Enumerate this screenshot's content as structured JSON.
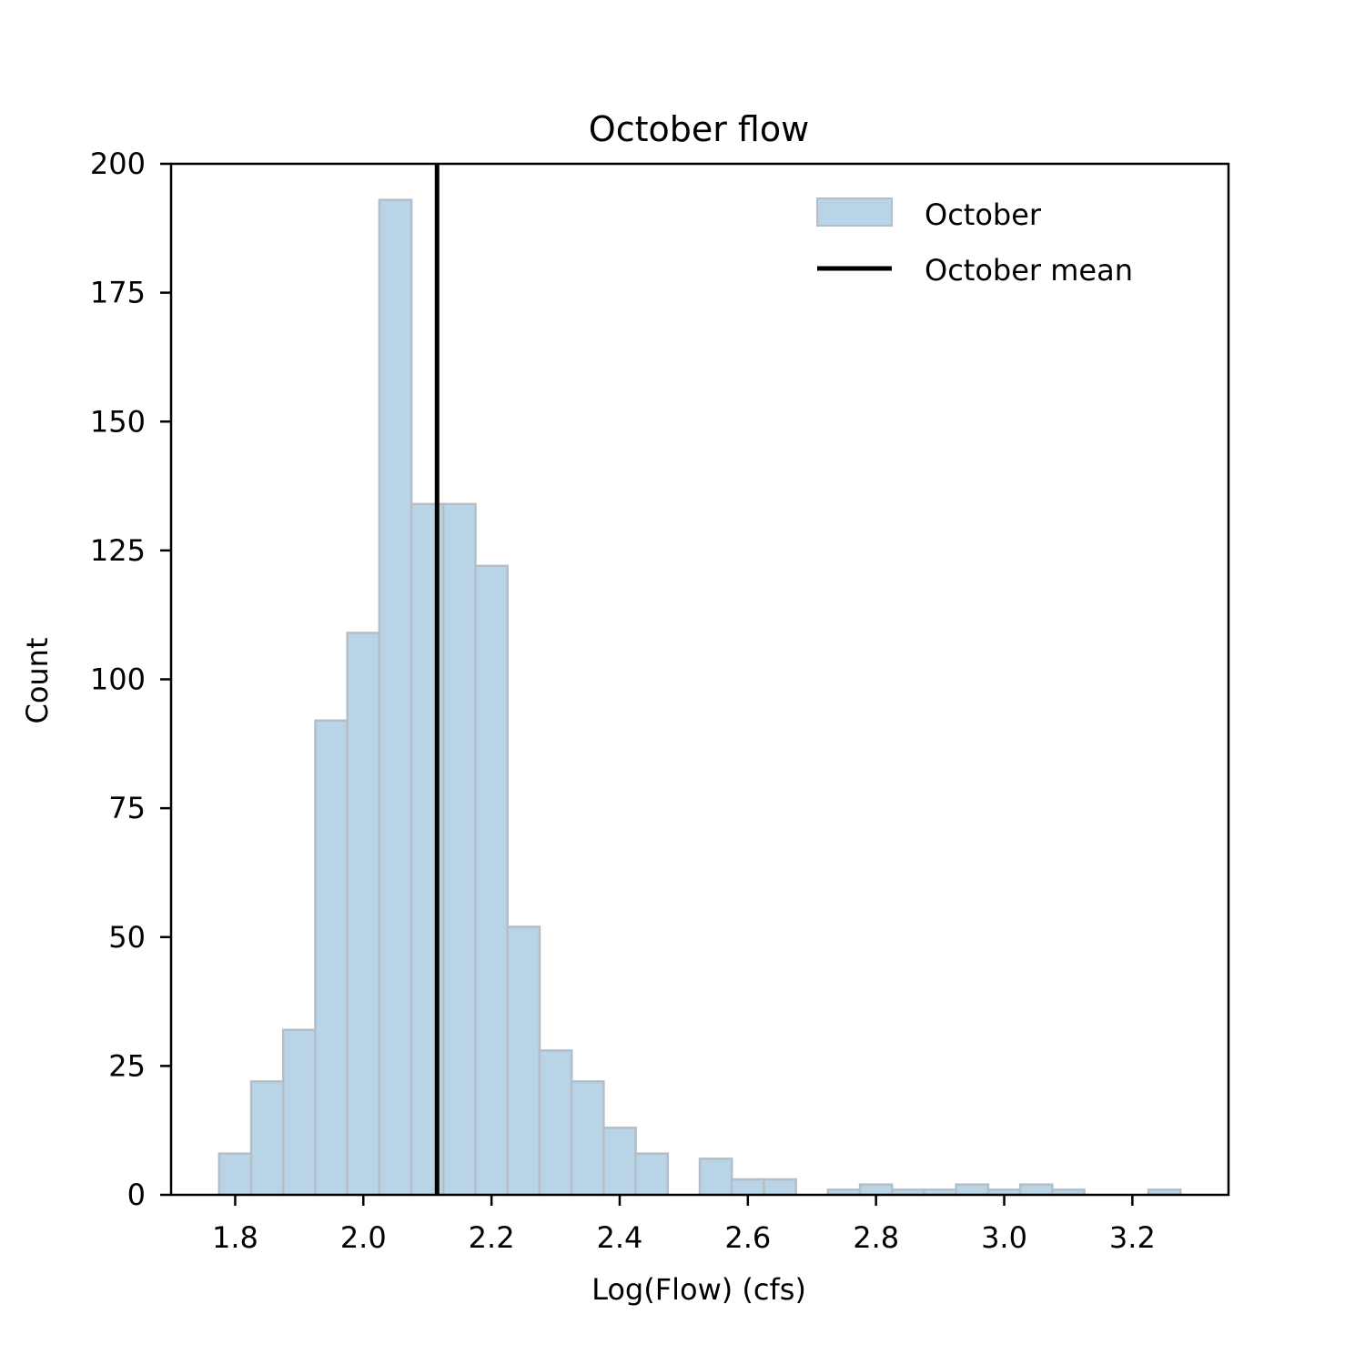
{
  "chart_data": {
    "type": "bar",
    "title": "October flow",
    "xlabel": "Log(Flow) (cfs)",
    "ylabel": "Count",
    "xlim": [
      1.7,
      3.35
    ],
    "ylim": [
      0,
      200
    ],
    "xticks": [
      1.8,
      2.0,
      2.2,
      2.4,
      2.6,
      2.8,
      3.0,
      3.2
    ],
    "xtick_labels": [
      "1.8",
      "2.0",
      "2.2",
      "2.4",
      "2.6",
      "2.8",
      "3.0",
      "3.2"
    ],
    "yticks": [
      0,
      25,
      50,
      75,
      100,
      125,
      150,
      175,
      200
    ],
    "ytick_labels": [
      "0",
      "25",
      "50",
      "75",
      "100",
      "125",
      "150",
      "175",
      "200"
    ],
    "bin_edges": [
      1.775,
      1.825,
      1.875,
      1.925,
      1.975,
      2.025,
      2.075,
      2.125,
      2.175,
      2.225,
      2.275,
      2.325,
      2.375,
      2.425,
      2.475,
      2.525,
      2.575,
      2.625,
      2.675,
      2.725,
      2.775,
      2.825,
      2.875,
      2.925,
      2.975,
      3.025,
      3.075,
      3.125,
      3.175,
      3.225,
      3.275
    ],
    "counts": [
      8,
      22,
      32,
      92,
      109,
      193,
      134,
      134,
      122,
      52,
      28,
      22,
      13,
      8,
      0,
      7,
      3,
      3,
      0,
      1,
      2,
      1,
      1,
      2,
      1,
      2,
      1,
      0,
      0,
      1
    ],
    "mean_line_x": 2.115,
    "bar_color": "#b9d4e6",
    "bar_edge_color": "#b3bec8",
    "mean_line_color": "#000000",
    "legend": {
      "position": "upper right",
      "entries": [
        {
          "label": "October",
          "kind": "patch"
        },
        {
          "label": "October mean",
          "kind": "line"
        }
      ]
    }
  }
}
